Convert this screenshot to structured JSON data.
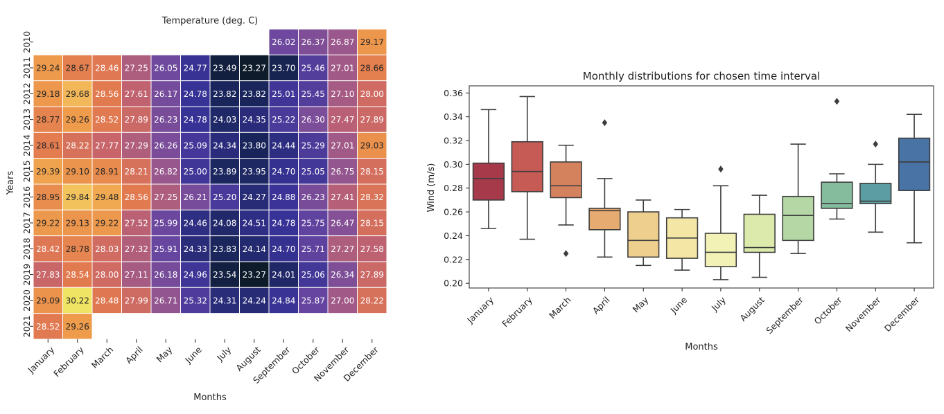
{
  "chart_data": [
    {
      "type": "heatmap",
      "title": "Temperature (deg. C)",
      "xlabel": "Months",
      "ylabel": "Years",
      "colormap": "plasma-like (low = dark navy, high = bright yellow)",
      "x_categories": [
        "January",
        "February",
        "March",
        "April",
        "May",
        "June",
        "July",
        "August",
        "September",
        "October",
        "November",
        "December"
      ],
      "y_categories": [
        "2010",
        "2011",
        "2012",
        "2013",
        "2014",
        "2015",
        "2016",
        "2017",
        "2018",
        "2019",
        "2020",
        "2021"
      ],
      "values": [
        [
          null,
          null,
          null,
          null,
          null,
          null,
          null,
          null,
          26.02,
          26.37,
          26.87,
          29.17
        ],
        [
          29.24,
          28.67,
          28.46,
          27.25,
          26.05,
          24.77,
          23.49,
          23.27,
          23.7,
          25.46,
          27.01,
          28.66
        ],
        [
          29.18,
          29.68,
          28.56,
          27.61,
          26.17,
          24.78,
          23.82,
          23.82,
          25.01,
          25.45,
          27.1,
          28.0
        ],
        [
          28.77,
          29.26,
          28.52,
          27.89,
          26.23,
          24.78,
          24.03,
          24.35,
          25.22,
          26.3,
          27.47,
          27.89
        ],
        [
          28.61,
          28.22,
          27.77,
          27.29,
          26.26,
          25.09,
          24.34,
          23.8,
          24.44,
          25.29,
          27.01,
          29.03
        ],
        [
          29.39,
          29.1,
          28.91,
          28.21,
          26.82,
          25.0,
          23.89,
          23.95,
          24.7,
          25.05,
          26.75,
          28.15
        ],
        [
          28.95,
          29.84,
          29.48,
          28.56,
          27.25,
          26.21,
          25.2,
          24.27,
          24.88,
          26.23,
          27.41,
          28.32
        ],
        [
          29.22,
          29.13,
          29.22,
          27.52,
          25.99,
          24.46,
          24.08,
          24.51,
          24.78,
          25.75,
          26.47,
          28.15
        ],
        [
          28.42,
          28.78,
          28.03,
          27.32,
          25.91,
          24.33,
          23.83,
          24.14,
          24.7,
          25.71,
          27.27,
          27.58
        ],
        [
          27.83,
          28.54,
          28.0,
          27.11,
          26.18,
          24.96,
          23.54,
          23.27,
          24.01,
          25.06,
          26.34,
          27.89
        ],
        [
          29.09,
          30.22,
          28.48,
          27.99,
          26.71,
          25.32,
          24.31,
          24.24,
          24.84,
          25.87,
          27.0,
          28.22
        ],
        [
          28.52,
          29.26,
          null,
          null,
          null,
          null,
          null,
          null,
          null,
          null,
          null,
          null
        ]
      ],
      "vmin": 23.27,
      "vmax": 30.22
    },
    {
      "type": "box",
      "title": "Monthly distributions for chosen time interval",
      "xlabel": "Months",
      "ylabel": "Wind (m/s)",
      "ylim": [
        0.196,
        0.366
      ],
      "yticks": [
        0.2,
        0.22,
        0.24,
        0.26,
        0.28,
        0.3,
        0.32,
        0.34,
        0.36
      ],
      "grid": false,
      "categories": [
        "January",
        "February",
        "March",
        "April",
        "May",
        "June",
        "July",
        "August",
        "September",
        "October",
        "November",
        "December"
      ],
      "boxes": [
        {
          "whislo": 0.246,
          "q1": 0.27,
          "med": 0.288,
          "q3": 0.301,
          "whishi": 0.346,
          "fliers": [],
          "color": "#a63a4a"
        },
        {
          "whislo": 0.237,
          "q1": 0.277,
          "med": 0.294,
          "q3": 0.319,
          "whishi": 0.357,
          "fliers": [],
          "color": "#c65a55"
        },
        {
          "whislo": 0.249,
          "q1": 0.272,
          "med": 0.282,
          "q3": 0.302,
          "whishi": 0.316,
          "fliers": [
            0.225
          ],
          "color": "#d4825e"
        },
        {
          "whislo": 0.222,
          "q1": 0.245,
          "med": 0.261,
          "q3": 0.263,
          "whishi": 0.288,
          "fliers": [
            0.335
          ],
          "color": "#e5ab70"
        },
        {
          "whislo": 0.215,
          "q1": 0.222,
          "med": 0.236,
          "q3": 0.26,
          "whishi": 0.27,
          "fliers": [],
          "color": "#efcf8e"
        },
        {
          "whislo": 0.211,
          "q1": 0.221,
          "med": 0.238,
          "q3": 0.255,
          "whishi": 0.262,
          "fliers": [],
          "color": "#f4e7a6"
        },
        {
          "whislo": 0.203,
          "q1": 0.214,
          "med": 0.226,
          "q3": 0.242,
          "whishi": 0.282,
          "fliers": [
            0.296
          ],
          "color": "#f3f2b6"
        },
        {
          "whislo": 0.205,
          "q1": 0.226,
          "med": 0.23,
          "q3": 0.258,
          "whishi": 0.274,
          "fliers": [],
          "color": "#dcebab"
        },
        {
          "whislo": 0.225,
          "q1": 0.236,
          "med": 0.257,
          "q3": 0.273,
          "whishi": 0.317,
          "fliers": [],
          "color": "#b5d7a6"
        },
        {
          "whislo": 0.254,
          "q1": 0.263,
          "med": 0.267,
          "q3": 0.285,
          "whishi": 0.292,
          "fliers": [
            0.353
          ],
          "color": "#86bc9e"
        },
        {
          "whislo": 0.243,
          "q1": 0.267,
          "med": 0.269,
          "q3": 0.284,
          "whishi": 0.3,
          "fliers": [
            0.317
          ],
          "color": "#5c9ca3"
        },
        {
          "whislo": 0.234,
          "q1": 0.278,
          "med": 0.302,
          "q3": 0.322,
          "whishi": 0.342,
          "fliers": [],
          "color": "#4a73a5"
        }
      ]
    }
  ]
}
